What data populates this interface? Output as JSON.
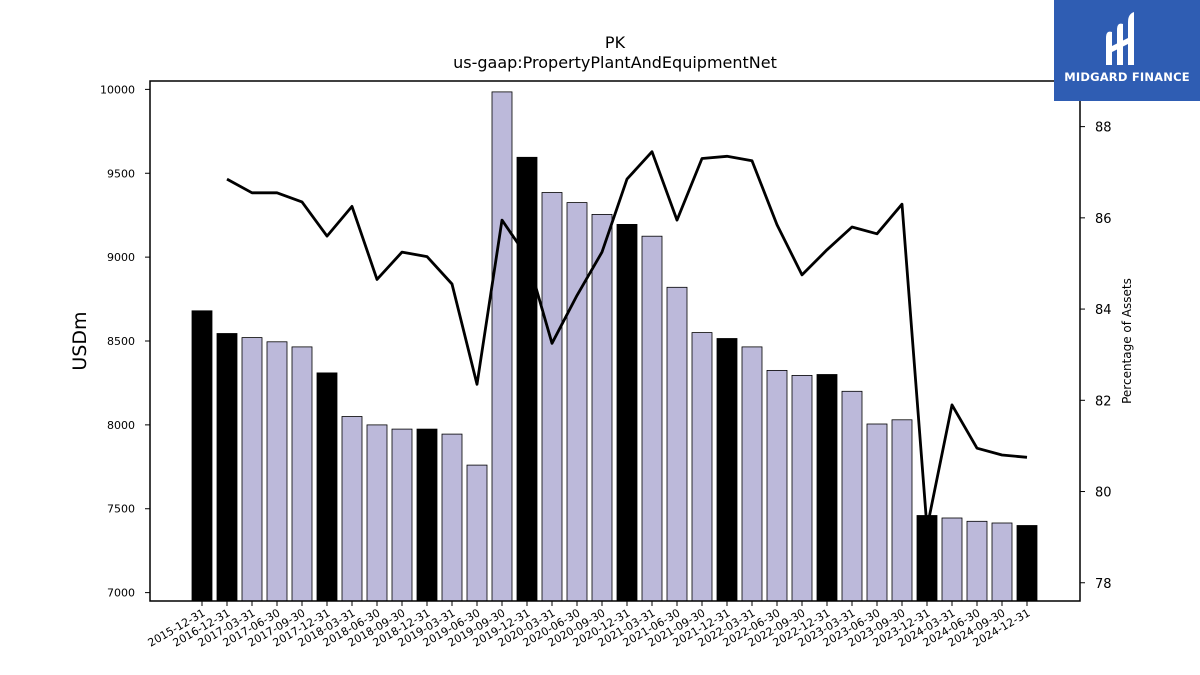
{
  "brand": {
    "name": "MIDGARD FINANCE",
    "color": "#2f5db3"
  },
  "chart_data": {
    "type": "bar",
    "title": "PK",
    "subtitle": "us-gaap:PropertyPlantAndEquipmentNet",
    "ylabel": "USDm",
    "y2label": "Percentage of Assets",
    "ylim": [
      6950,
      10050
    ],
    "y2lim": [
      77.6,
      89.0
    ],
    "yticks": [
      7000,
      7500,
      8000,
      8500,
      9000,
      9500,
      10000
    ],
    "y2ticks": [
      78,
      80,
      82,
      84,
      86,
      88
    ],
    "categories": [
      "2015-12-31",
      "2016-12-31",
      "2017-03-31",
      "2017-06-30",
      "2017-09-30",
      "2017-12-31",
      "2018-03-31",
      "2018-06-30",
      "2018-09-30",
      "2018-12-31",
      "2019-03-31",
      "2019-06-30",
      "2019-09-30",
      "2019-12-31",
      "2020-03-31",
      "2020-06-30",
      "2020-09-30",
      "2020-12-31",
      "2021-03-31",
      "2021-06-30",
      "2021-09-30",
      "2021-12-31",
      "2022-03-31",
      "2022-06-30",
      "2022-09-30",
      "2022-12-31",
      "2023-03-31",
      "2023-06-30",
      "2023-09-30",
      "2023-12-31",
      "2024-03-31",
      "2024-06-30",
      "2024-09-30",
      "2024-12-31"
    ],
    "series": [
      {
        "type": "bar",
        "axis": "left",
        "values": [
          8680,
          8545,
          8520,
          8495,
          8465,
          8310,
          8050,
          8000,
          7975,
          7975,
          7945,
          7760,
          9985,
          9595,
          9385,
          9325,
          9255,
          9195,
          9125,
          8820,
          8550,
          8515,
          8465,
          8325,
          8295,
          8300,
          8200,
          8005,
          8030,
          7460,
          7445,
          7425,
          7415,
          7400
        ],
        "annual": [
          true,
          true,
          false,
          false,
          false,
          true,
          false,
          false,
          false,
          true,
          false,
          false,
          false,
          true,
          false,
          false,
          false,
          true,
          false,
          false,
          false,
          true,
          false,
          false,
          false,
          true,
          false,
          false,
          false,
          true,
          false,
          false,
          false,
          true
        ]
      },
      {
        "type": "line",
        "axis": "right",
        "values": [
          null,
          86.85,
          86.55,
          86.55,
          86.35,
          85.6,
          86.25,
          84.65,
          85.25,
          85.15,
          84.55,
          82.35,
          85.95,
          85.15,
          83.25,
          84.3,
          85.25,
          86.85,
          87.45,
          85.95,
          87.3,
          87.35,
          87.25,
          85.85,
          84.75,
          85.3,
          85.8,
          85.65,
          86.3,
          79.2,
          81.9,
          80.95,
          80.8,
          80.75
        ]
      }
    ],
    "colors": {
      "annual_bar": "#000000",
      "quarter_bar": "#bcb9da",
      "bar_edge": "#000000",
      "line": "#000000"
    }
  }
}
